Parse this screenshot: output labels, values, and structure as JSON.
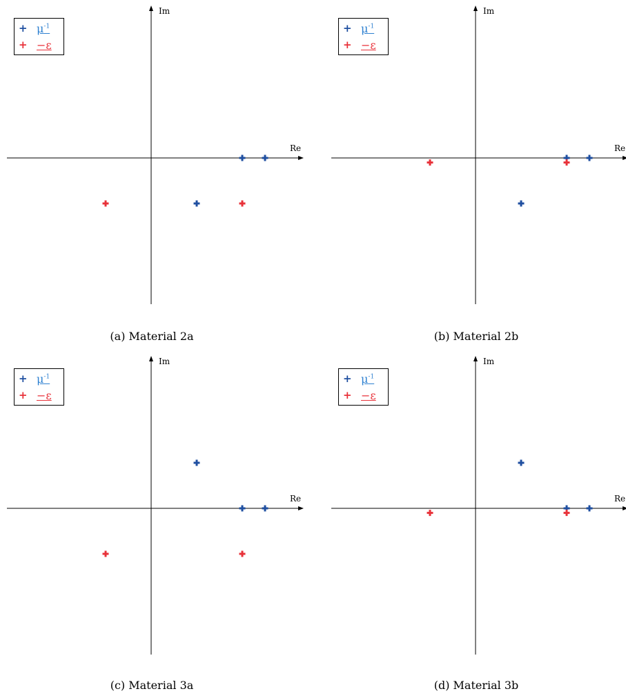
{
  "colors": {
    "mu_inv": "#1f4fa0",
    "neg_eps": "#e8323a",
    "mu_inv_label": "#2c7fd0"
  },
  "legend": {
    "mu_inv_base": "μ",
    "mu_inv_sup": "-1",
    "neg_eps": "−ε"
  },
  "axis_labels": {
    "re": "Re",
    "im": "Im"
  },
  "chart_data": [
    {
      "type": "scatter",
      "caption": "(a) Material 2a",
      "xlabel": "Re",
      "ylabel": "Im",
      "series": [
        {
          "name": "μ⁻¹",
          "color": "#1f4fa0",
          "points": [
            [
              4,
              0
            ],
            [
              5,
              0
            ],
            [
              2,
              -2
            ]
          ]
        },
        {
          "name": "−ε",
          "color": "#e8323a",
          "points": [
            [
              -2,
              -2
            ],
            [
              4,
              -2
            ]
          ]
        }
      ]
    },
    {
      "type": "scatter",
      "caption": "(b) Material 2b",
      "xlabel": "Re",
      "ylabel": "Im",
      "series": [
        {
          "name": "μ⁻¹",
          "color": "#1f4fa0",
          "points": [
            [
              4,
              0
            ],
            [
              5,
              0
            ],
            [
              2,
              -2
            ]
          ]
        },
        {
          "name": "−ε",
          "color": "#e8323a",
          "points": [
            [
              -2,
              -0.2
            ],
            [
              4,
              -0.2
            ]
          ]
        }
      ]
    },
    {
      "type": "scatter",
      "caption": "(c) Material 3a",
      "xlabel": "Re",
      "ylabel": "Im",
      "series": [
        {
          "name": "μ⁻¹",
          "color": "#1f4fa0",
          "points": [
            [
              4,
              0
            ],
            [
              5,
              0
            ],
            [
              2,
              2
            ]
          ]
        },
        {
          "name": "−ε",
          "color": "#e8323a",
          "points": [
            [
              -2,
              -2
            ],
            [
              4,
              -2
            ]
          ]
        }
      ]
    },
    {
      "type": "scatter",
      "caption": "(d) Material 3b",
      "xlabel": "Re",
      "ylabel": "Im",
      "series": [
        {
          "name": "μ⁻¹",
          "color": "#1f4fa0",
          "points": [
            [
              4,
              0
            ],
            [
              5,
              0
            ],
            [
              2,
              2
            ]
          ]
        },
        {
          "name": "−ε",
          "color": "#e8323a",
          "points": [
            [
              -2,
              -0.2
            ],
            [
              4,
              -0.2
            ]
          ]
        }
      ]
    }
  ]
}
